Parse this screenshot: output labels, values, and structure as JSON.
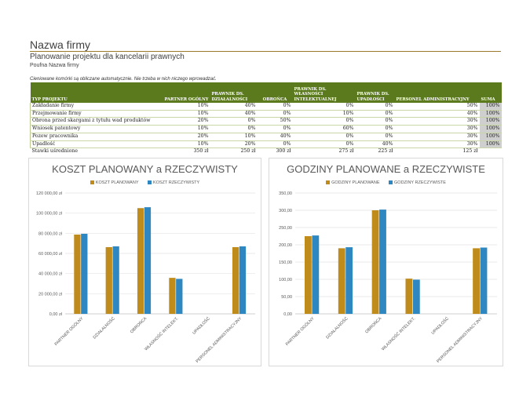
{
  "header": {
    "company": "Nazwa firmy",
    "subtitle": "Planowanie projektu dla kancelarii prawnych",
    "confidential": "Poufna Nazwa firmy",
    "note": "Cieniowane komórki są obliczane automatycznie. Nie trzeba w nich niczego wprowadzać."
  },
  "table": {
    "columns": [
      "TYP PROJEKTU",
      "PARTNER OGÓLNY",
      "PRAWNIK DS. DZIAŁALNOŚCI",
      "OBROŃCA",
      "PRAWNIK DS. WŁASNOŚCI INTELEKTUALNEJ",
      "PRAWNIK DS. UPADŁOŚCI",
      "PERSONEL ADMINISTRACYJNY",
      "SUMA"
    ],
    "rows": [
      [
        "Zakładanie firmy",
        "10%",
        "40%",
        "0%",
        "0%",
        "0%",
        "50%",
        "100%"
      ],
      [
        "Przejmowanie firmy",
        "10%",
        "40%",
        "0%",
        "10%",
        "0%",
        "40%",
        "100%"
      ],
      [
        "Obrona przed skargami z tytułu wad produktów",
        "20%",
        "0%",
        "50%",
        "0%",
        "0%",
        "30%",
        "100%"
      ],
      [
        "Wniosek patentowy",
        "10%",
        "0%",
        "0%",
        "60%",
        "0%",
        "30%",
        "100%"
      ],
      [
        "Pozew pracownika",
        "20%",
        "10%",
        "40%",
        "0%",
        "0%",
        "30%",
        "100%"
      ],
      [
        "Upadłość",
        "10%",
        "20%",
        "0%",
        "0%",
        "40%",
        "30%",
        "100%"
      ]
    ],
    "rates": [
      "Stawki uśrednione",
      "350 zł",
      "250 zł",
      "300 zł",
      "275 zł",
      "225 zł",
      "125 zł"
    ]
  },
  "chart_data": [
    {
      "type": "bar",
      "title": "KOSZT PLANOWANY a RZECZYWISTY",
      "categories": [
        "PARTNER OGÓLNY",
        "DZIAŁALNOŚĆ",
        "OBROŃCA",
        "WŁASNOŚĆ INTELEKT.",
        "UPADŁOŚĆ",
        "PERSONEL ADMINISTRACYJNY"
      ],
      "series": [
        {
          "name": "KOSZT PLANOWANY",
          "color": "#bf8b1b",
          "values": [
            78750,
            66250,
            105000,
            35750,
            0,
            66250
          ]
        },
        {
          "name": "KOSZT RZECZYWISTY",
          "color": "#2e87c0",
          "values": [
            79500,
            67000,
            105900,
            34750,
            0,
            67000
          ]
        }
      ],
      "ylim": [
        0,
        120000
      ],
      "yticks": [
        "0,00 zł",
        "20 000,00 zł",
        "40 000,00 zł",
        "60 000,00 zł",
        "80 000,00 zł",
        "100 000,00 zł",
        "120 000,00 zł"
      ],
      "legend": "top",
      "grid": true
    },
    {
      "type": "bar",
      "title": "GODZINY PLANOWANE a RZECZYWISTE",
      "categories": [
        "PARTNER OGÓLNY",
        "DZIAŁALNOŚĆ",
        "OBROŃCA",
        "WŁASNOŚĆ INTELEKT.",
        "UPADŁOŚĆ",
        "PERSONEL ADMINISTRACYJNY"
      ],
      "series": [
        {
          "name": "GODZINY PLANOWANE",
          "color": "#bf8b1b",
          "values": [
            225,
            190,
            300,
            102,
            0,
            190
          ]
        },
        {
          "name": "GODZINY RZECZYWISTE",
          "color": "#2e87c0",
          "values": [
            227,
            193,
            302,
            99,
            0,
            192
          ]
        }
      ],
      "ylim": [
        0,
        350
      ],
      "yticks": [
        "0,00",
        "50,00",
        "100,00",
        "150,00",
        "200,00",
        "250,00",
        "300,00",
        "350,00"
      ],
      "legend": "top",
      "grid": true
    }
  ]
}
